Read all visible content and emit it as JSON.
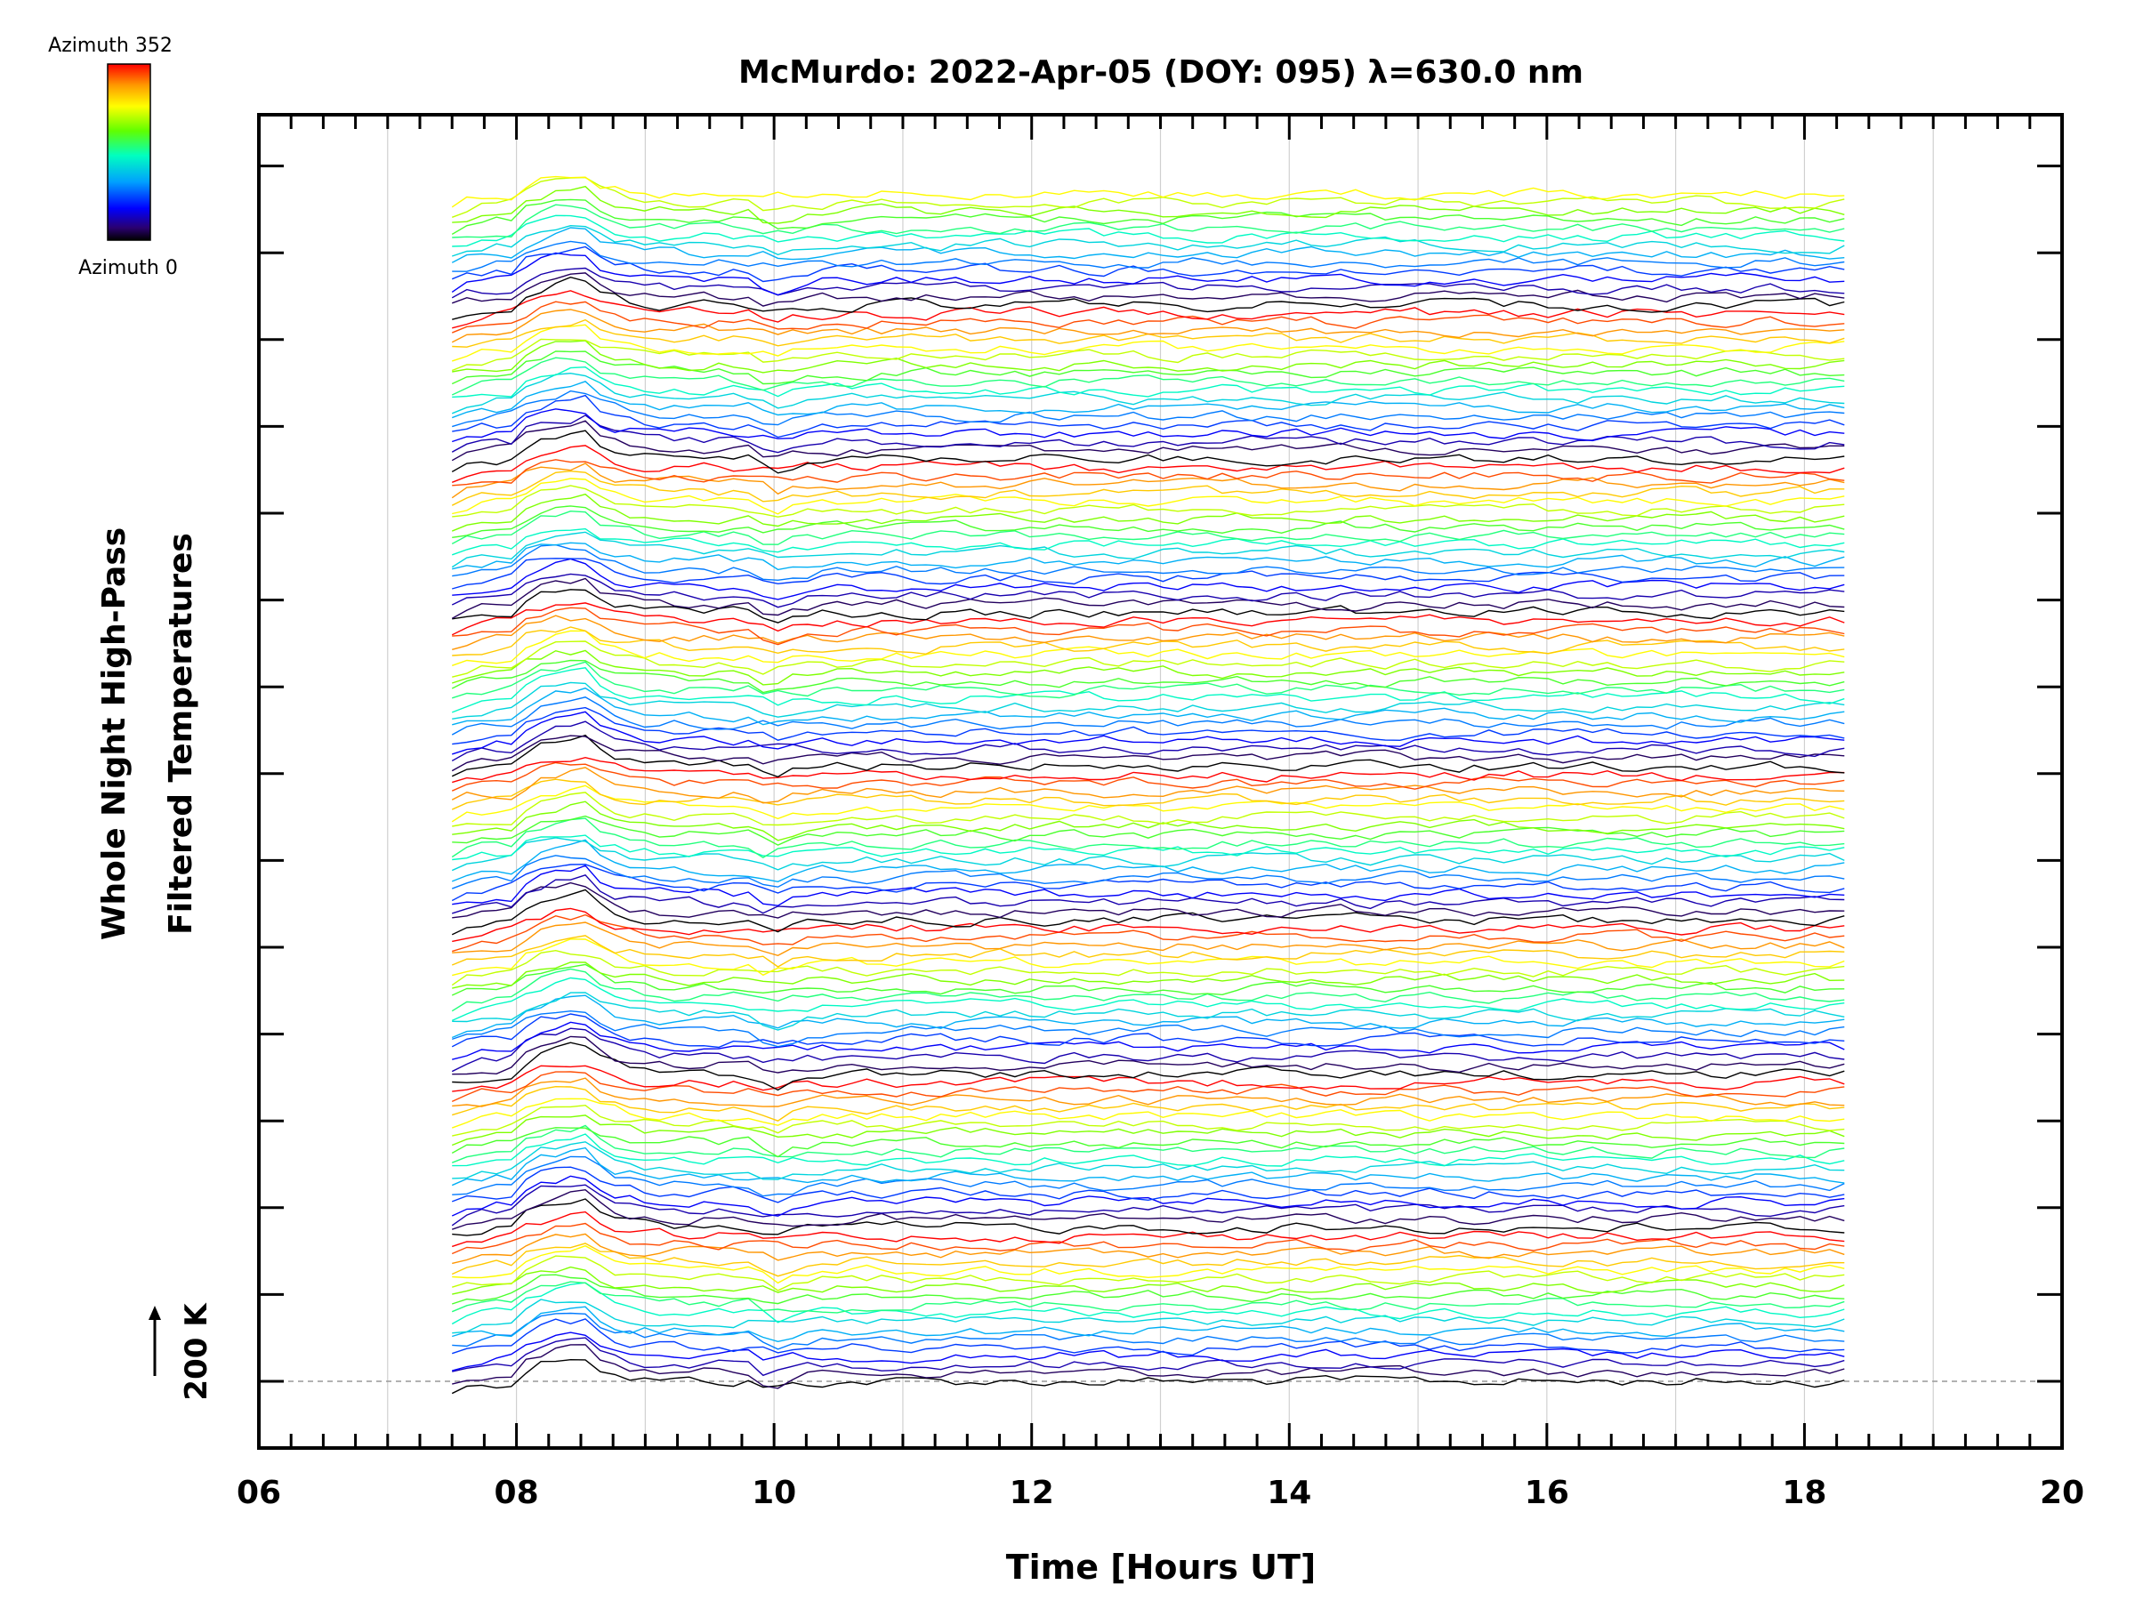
{
  "chart_data": {
    "type": "line",
    "title": "McMurdo: 2022-Apr-05 (DOY: 095) λ=630.0 nm",
    "xlabel": "Time [Hours UT]",
    "ylabel_line1": "Whole Night High-Pass",
    "ylabel_line2": "Filtered Temperatures",
    "scale_label": "200 K",
    "scale_arrow": "↑",
    "xlim": [
      6,
      20
    ],
    "x_tick_labels": [
      "06",
      "08",
      "10",
      "12",
      "14",
      "16",
      "18",
      "20"
    ],
    "x_tick_values": [
      6,
      8,
      10,
      12,
      14,
      16,
      18,
      20
    ],
    "grid": "vertical hourly lines",
    "colorbar": {
      "top_label": "Azimuth  352",
      "bottom_label": "Azimuth  0",
      "colormap": "rainbow",
      "min": 0,
      "max": 352
    },
    "time_range": [
      7.5,
      18.42
    ],
    "n_traces": 140,
    "offset_units": "stacked, one trace per azimuth bin, offset upward",
    "colors": {
      "axis": "#000000",
      "grid": "#d0d0d0",
      "baseline": "#999999"
    }
  }
}
